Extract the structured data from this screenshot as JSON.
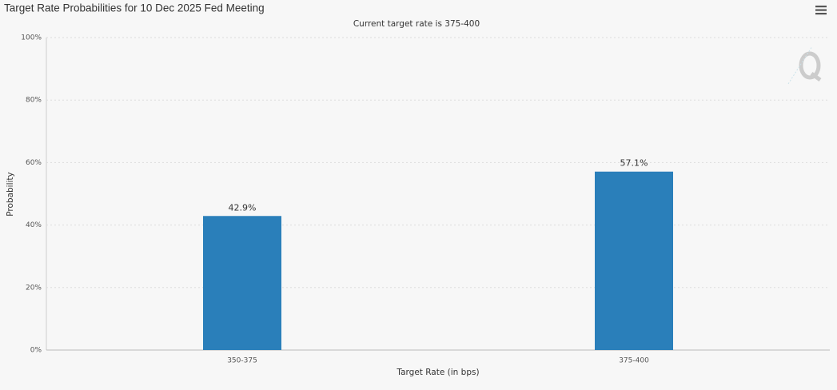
{
  "chart_data": {
    "type": "bar",
    "title": "Target Rate Probabilities for 10 Dec 2025 Fed Meeting",
    "subtitle": "Current target rate is 375-400",
    "x_label": "Target Rate (in bps)",
    "y_label": "Probability",
    "categories": [
      "350-375",
      "375-400"
    ],
    "values": [
      42.9,
      57.1
    ],
    "value_labels": [
      "42.9%",
      "57.1%"
    ],
    "color": "#2a7fba",
    "ylim": [
      0,
      100
    ],
    "yticks": [
      {
        "value": 0,
        "label": "0%"
      },
      {
        "value": 20,
        "label": "20%"
      },
      {
        "value": 40,
        "label": "40%"
      },
      {
        "value": 60,
        "label": "60%"
      },
      {
        "value": 80,
        "label": "80%"
      },
      {
        "value": 100,
        "label": "100%"
      }
    ],
    "grid": true
  }
}
